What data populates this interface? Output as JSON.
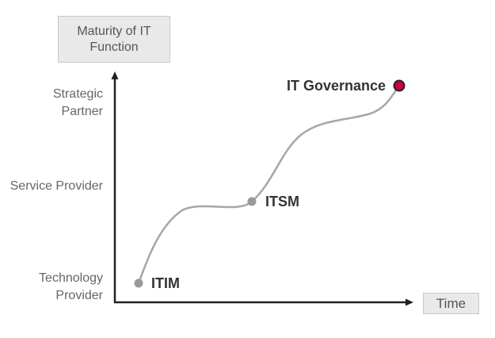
{
  "y_axis": {
    "title": "Maturity of IT Function"
  },
  "x_axis": {
    "title": "Time"
  },
  "levels": [
    {
      "id": "strategic",
      "label": "Strategic Partner"
    },
    {
      "id": "service",
      "label": "Service Provider"
    },
    {
      "id": "technology",
      "label": "Technology Provider"
    }
  ],
  "milestones": [
    {
      "id": "itim",
      "label": "ITIM",
      "color": "#999999"
    },
    {
      "id": "itsm",
      "label": "ITSM",
      "color": "#999999"
    },
    {
      "id": "governance",
      "label": "IT Governance",
      "color": "#c8004a"
    }
  ],
  "colors": {
    "axis": "#222222",
    "curve": "#a6a6a6",
    "highlight": "#c8004a"
  }
}
